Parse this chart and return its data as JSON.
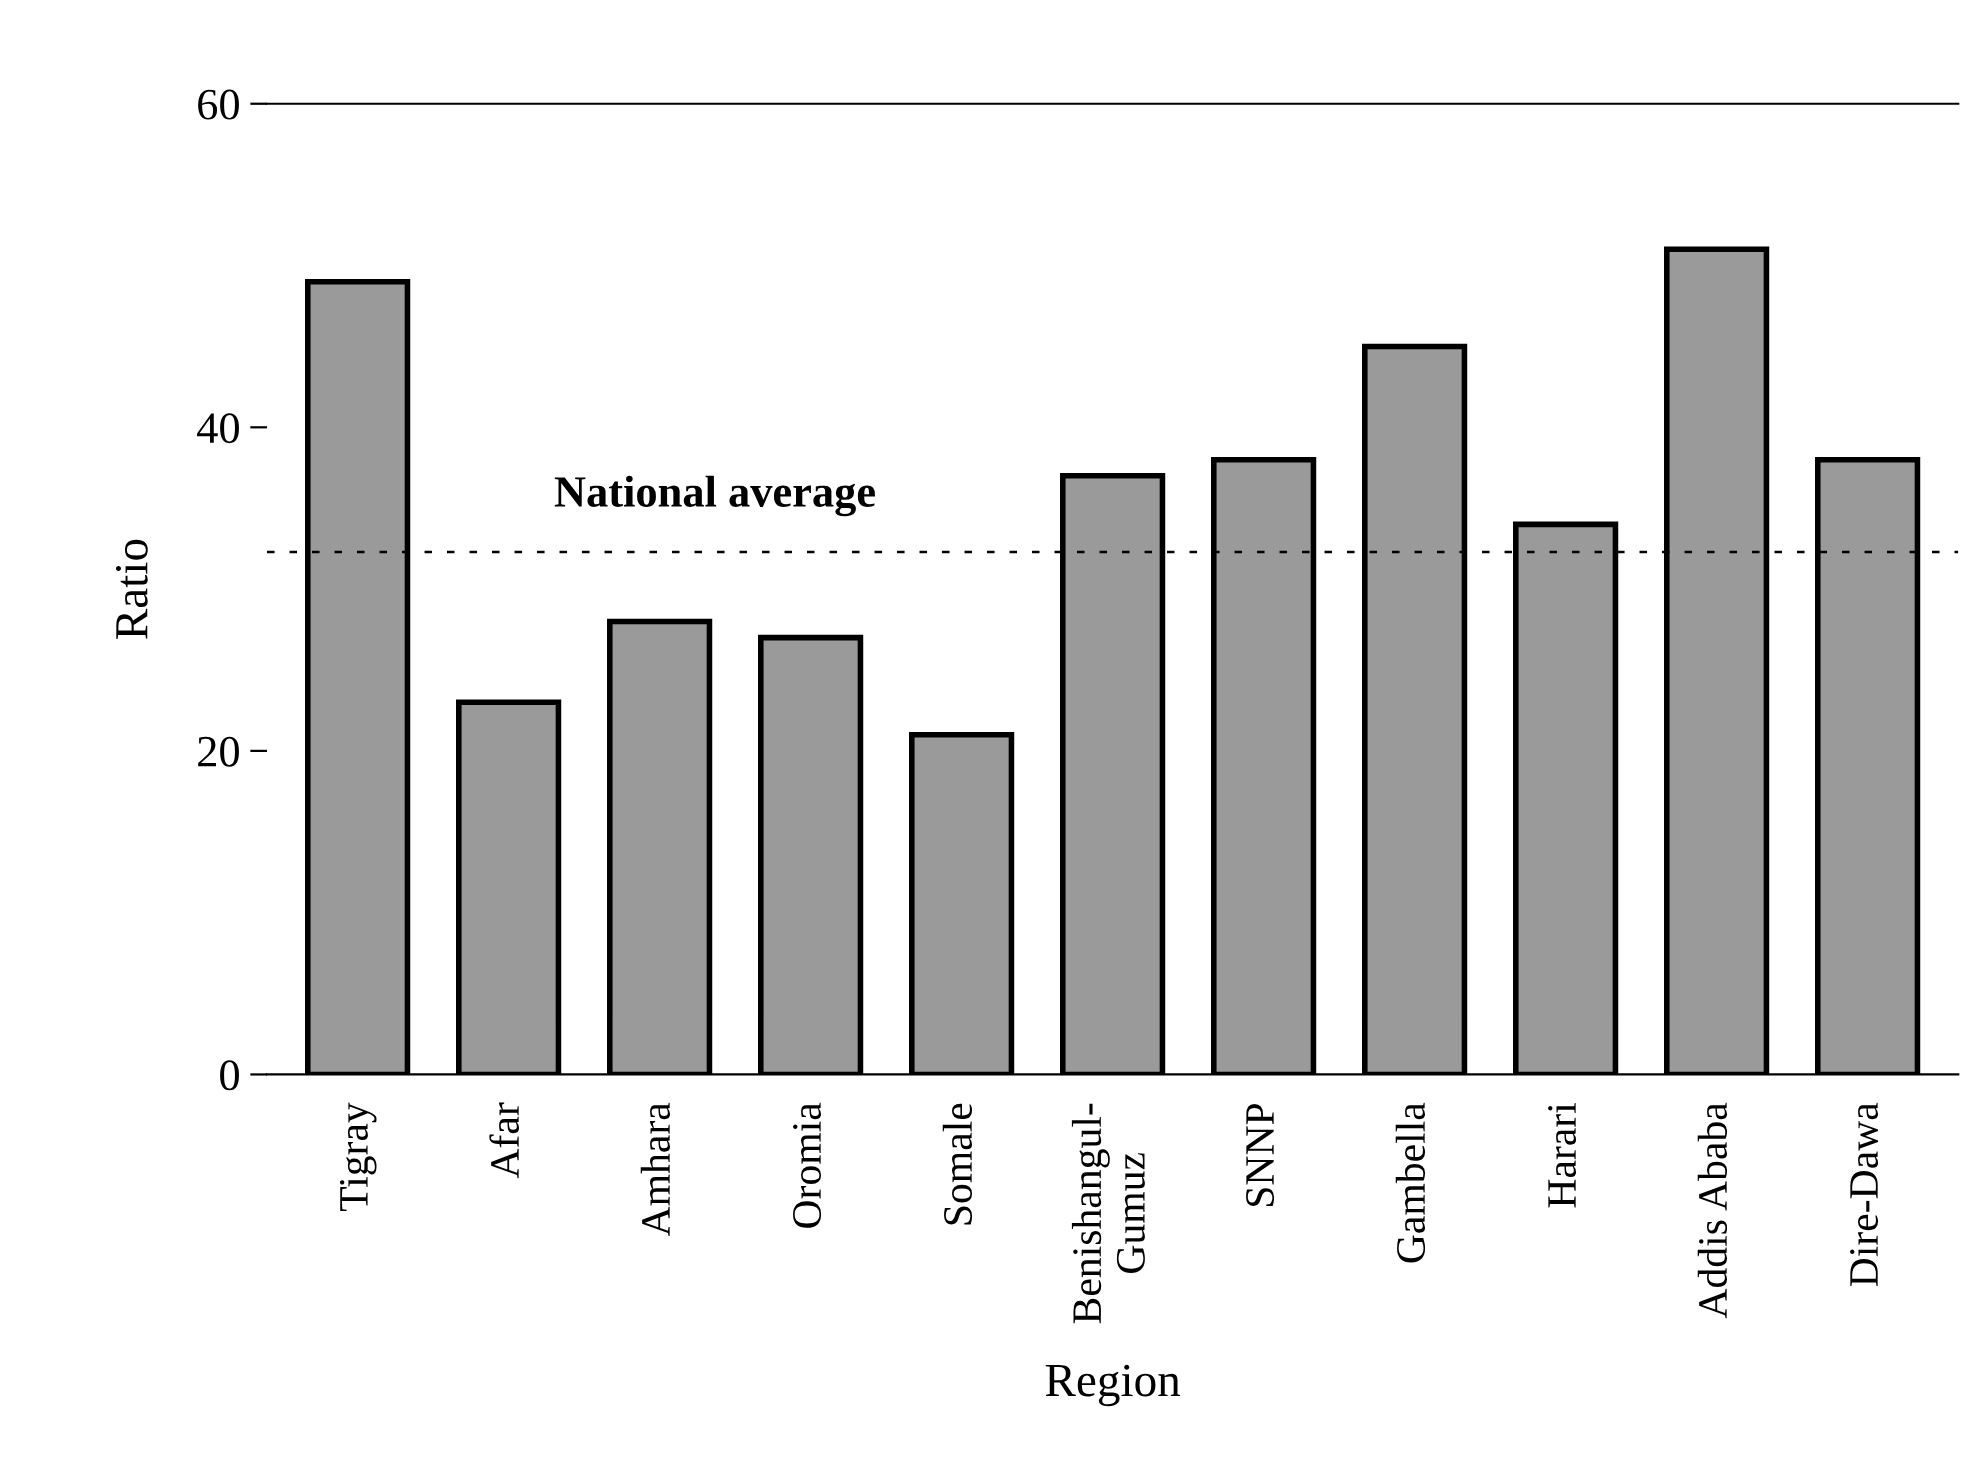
{
  "chart_data": {
    "type": "bar",
    "xlabel": "Region",
    "ylabel": "Ratio",
    "categories": [
      "Tigray",
      "Afar",
      "Amhara",
      "Oromia",
      "Somale",
      "Benishangul-\nGumuz",
      "SNNP",
      "Gambella",
      "Harari",
      "Addis Ababa",
      "Dire-Dawa"
    ],
    "values": [
      49,
      23,
      28,
      27,
      21,
      37,
      38,
      45,
      34,
      51,
      38
    ],
    "color": "#9a9a9a",
    "ylim": [
      0,
      60
    ],
    "yticks": [
      0,
      20,
      40,
      60
    ],
    "grid": false,
    "legend": false,
    "ref_lines": [
      {
        "axis": "y",
        "value": 32.3,
        "label": "National average",
        "color": "#000000",
        "line_style": "dashed"
      }
    ]
  }
}
